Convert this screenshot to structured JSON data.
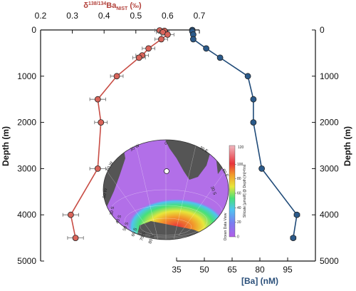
{
  "chart_data": {
    "type": "line",
    "y_axis": {
      "label": "Depth (m)",
      "min": 0,
      "max": 5000,
      "inverted": true,
      "ticks": [
        "0",
        "1000",
        "2000",
        "3000",
        "4000",
        "5000"
      ],
      "tick_values": [
        0,
        1000,
        2000,
        3000,
        4000,
        5000
      ]
    },
    "x_axis_top": {
      "label_main": "δ",
      "label_sup": "138/134",
      "label_elem": "Ba",
      "label_sub": "NIST",
      "label_unit_open": " (",
      "label_unit": "‰",
      "label_unit_close": ")",
      "min": 0.2,
      "max": 0.7,
      "ticks": [
        "0.2",
        "0.3",
        "0.4",
        "0.5",
        "0.6",
        "0.7"
      ],
      "tick_values": [
        0.2,
        0.3,
        0.4,
        0.5,
        0.6,
        0.7
      ],
      "color": "#b2403a"
    },
    "x_axis_bottom": {
      "label": "[Ba] (nM)",
      "min": 35,
      "max": 110,
      "ticks": [
        "35",
        "50",
        "65",
        "80",
        "95"
      ],
      "tick_values": [
        35,
        50,
        65,
        80,
        95
      ],
      "color": "#2a4f7a"
    },
    "series": [
      {
        "axis": "top",
        "color": "#d9645a",
        "line_color": "#c84c44",
        "points": [
          {
            "x": 0.575,
            "depth": 10,
            "err": 0.015
          },
          {
            "x": 0.59,
            "depth": 20,
            "err": 0.015
          },
          {
            "x": 0.585,
            "depth": 50,
            "err": 0.02
          },
          {
            "x": 0.6,
            "depth": 100,
            "err": 0.02
          },
          {
            "x": 0.58,
            "depth": 200,
            "err": 0.02
          },
          {
            "x": 0.54,
            "depth": 400,
            "err": 0.02
          },
          {
            "x": 0.52,
            "depth": 550,
            "err": 0.02
          },
          {
            "x": 0.51,
            "depth": 600,
            "err": 0.02
          },
          {
            "x": 0.44,
            "depth": 1000,
            "err": 0.02
          },
          {
            "x": 0.38,
            "depth": 1500,
            "err": 0.025
          },
          {
            "x": 0.39,
            "depth": 2000,
            "err": 0.02
          },
          {
            "x": 0.38,
            "depth": 3000,
            "err": 0.025
          },
          {
            "x": 0.295,
            "depth": 4000,
            "err": 0.025
          },
          {
            "x": 0.31,
            "depth": 4500,
            "err": 0.025
          }
        ]
      },
      {
        "axis": "bottom",
        "color": "#2b5a8a",
        "line_color": "#1f4a78",
        "points": [
          {
            "x": 43.5,
            "depth": 0,
            "err": 0.8
          },
          {
            "x": 43.5,
            "depth": 30,
            "err": 0.8
          },
          {
            "x": 44.0,
            "depth": 100,
            "err": 0.8
          },
          {
            "x": 44.0,
            "depth": 200,
            "err": 0.8
          },
          {
            "x": 51.0,
            "depth": 400,
            "err": 1.0
          },
          {
            "x": 58.5,
            "depth": 600,
            "err": 1.0
          },
          {
            "x": 73.5,
            "depth": 1000,
            "err": 1.0
          },
          {
            "x": 76.5,
            "depth": 1500,
            "err": 1.0
          },
          {
            "x": 76.5,
            "depth": 2000,
            "err": 1.0
          },
          {
            "x": 81.0,
            "depth": 3000,
            "err": 1.0
          },
          {
            "x": 100.0,
            "depth": 4000,
            "err": 1.5
          },
          {
            "x": 98.0,
            "depth": 4500,
            "err": 1.5
          }
        ]
      }
    ],
    "inset_map": {
      "colorbar_title": "Silicate [µmol/l] @ Depth [m]=first",
      "colorbar_ticks": [
        "0",
        "20",
        "40",
        "60",
        "80",
        "100"
      ],
      "colorbar_tick_values": [
        0,
        20,
        40,
        60,
        80,
        100
      ],
      "colorbar_top_label": "120",
      "colorbar_credit": "Ocean Data View",
      "colorbar_colors": [
        "#b15ee8",
        "#7a7cf0",
        "#4fc4f0",
        "#47e07a",
        "#e8e63a",
        "#f29a2b",
        "#e8333a",
        "#f0a0a8"
      ],
      "lat_labels": [
        "30 S",
        "30 S",
        "40 S",
        "50 S",
        "60 S",
        "70 S",
        "80 S"
      ],
      "lon_labels": [
        "0",
        "30 W",
        "60 W",
        "90 W",
        "30 E",
        "60 E"
      ],
      "station_marker": "station"
    }
  }
}
